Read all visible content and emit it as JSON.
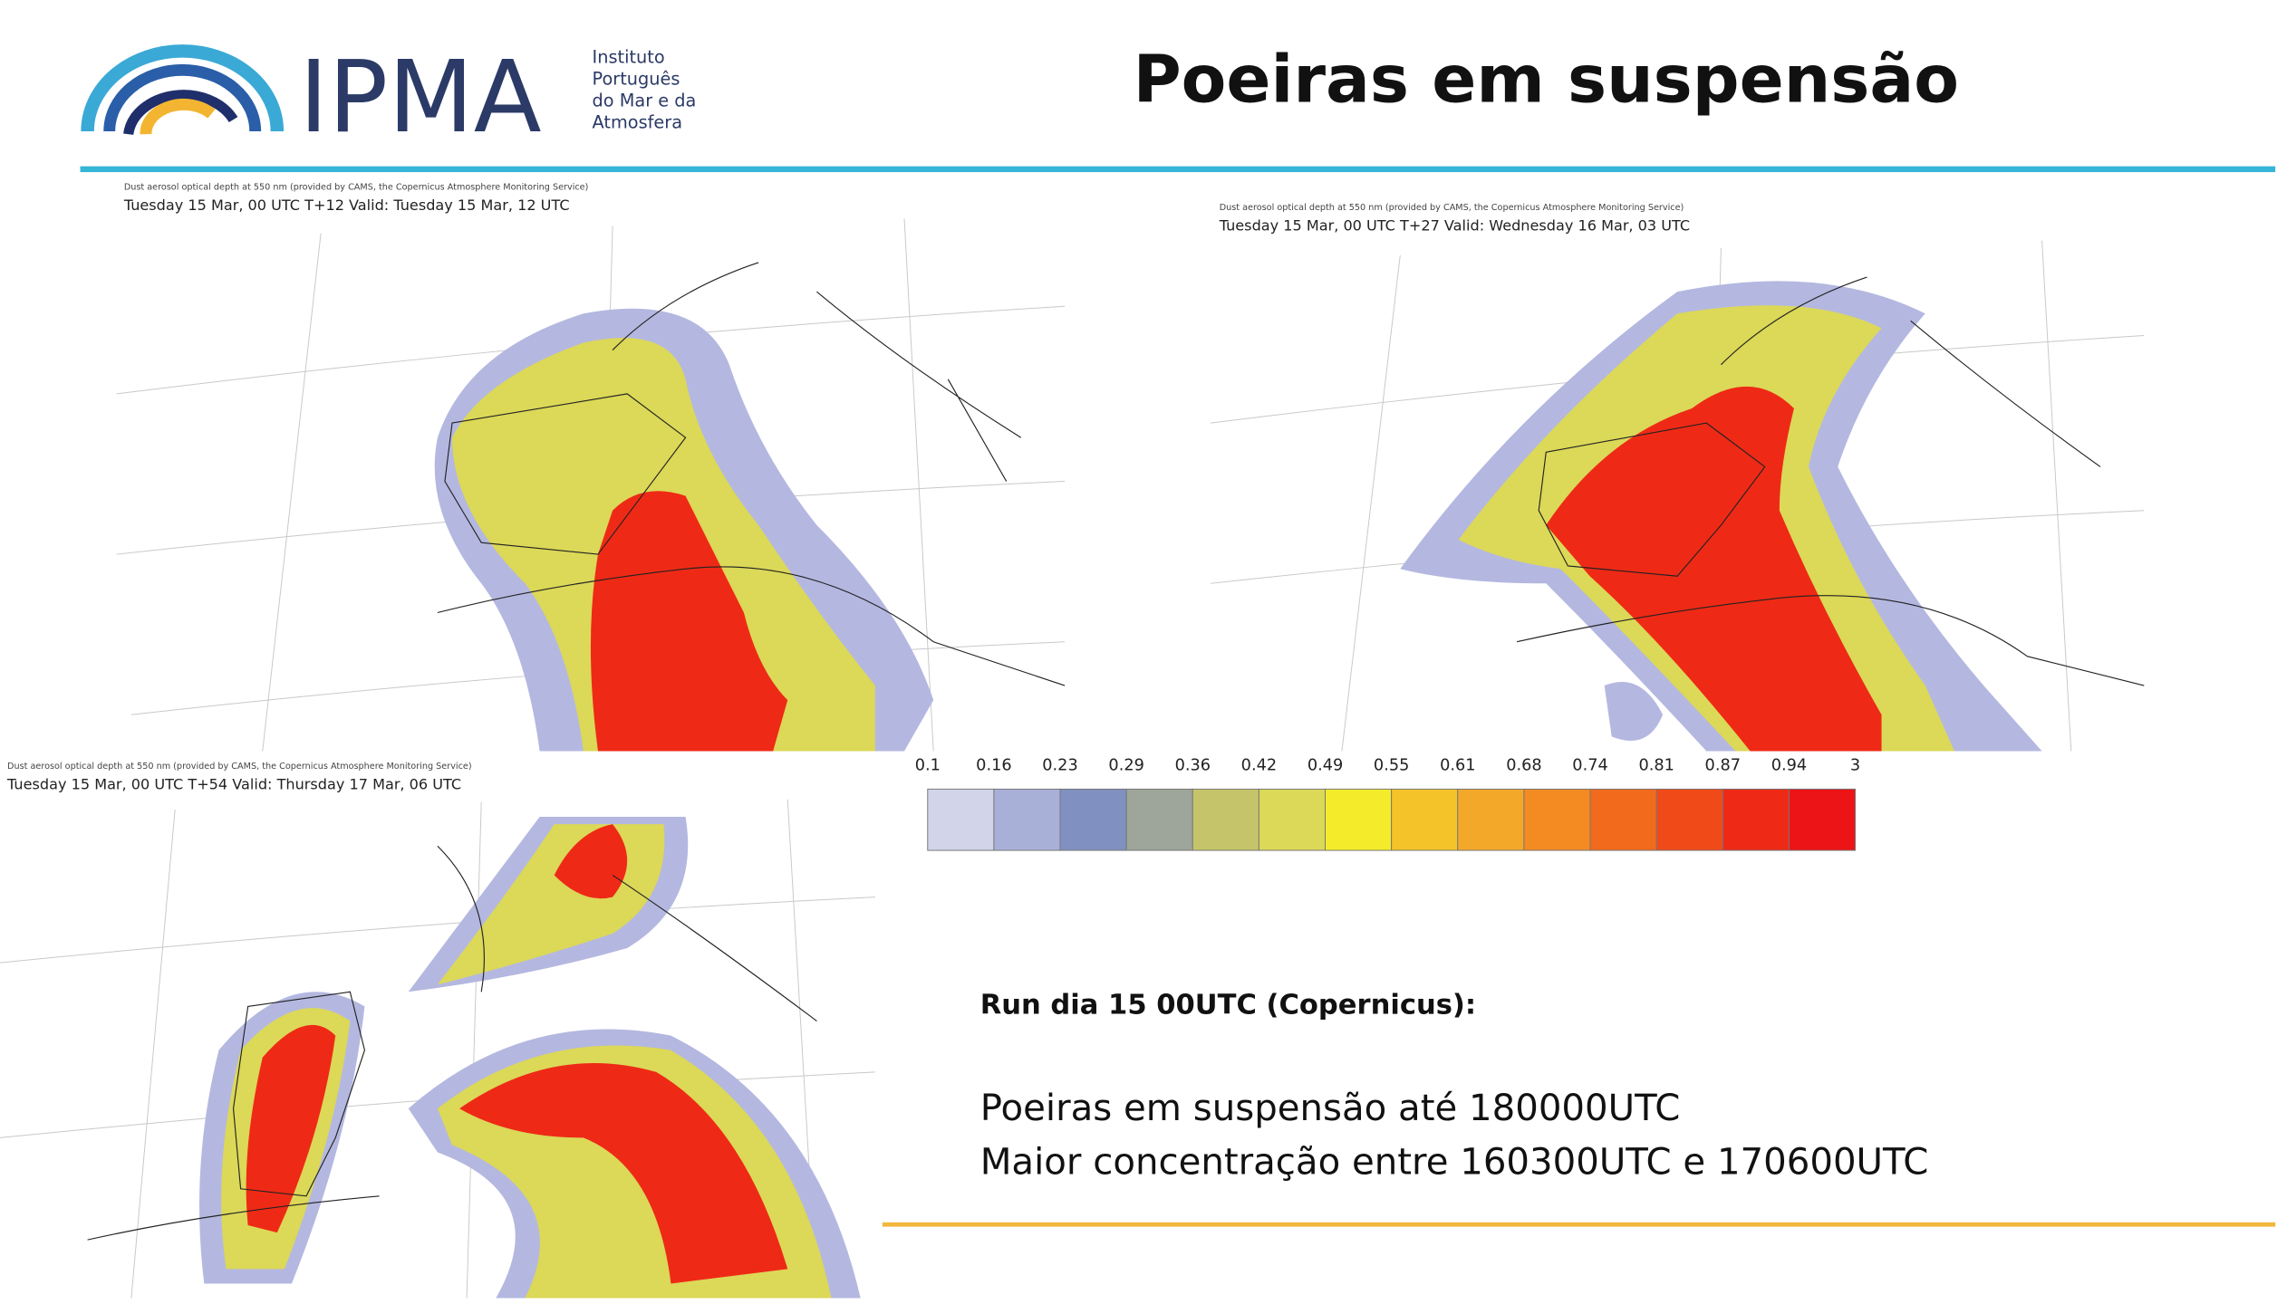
{
  "header": {
    "logo_text": "IPMA",
    "institute_lines": [
      "Instituto",
      "Português",
      "do Mar e da",
      "Atmosfera"
    ],
    "title": "Poeiras em suspensão"
  },
  "panels": [
    {
      "source": "Dust aerosol optical depth at 550 nm (provided by CAMS, the Copernicus Atmosphere Monitoring Service)",
      "caption": "Tuesday 15 Mar, 00 UTC T+12 Valid: Tuesday 15 Mar, 12 UTC"
    },
    {
      "source": "Dust aerosol optical depth at 550 nm (provided by CAMS, the Copernicus Atmosphere Monitoring Service)",
      "caption": "Tuesday 15 Mar, 00 UTC T+27 Valid: Wednesday 16 Mar, 03 UTC"
    },
    {
      "source": "Dust aerosol optical depth at 550 nm (provided by CAMS, the Copernicus Atmosphere Monitoring Service)",
      "caption": "Tuesday 15 Mar, 00 UTC T+54 Valid: Thursday 17 Mar, 06 UTC"
    }
  ],
  "legend": {
    "ticks": [
      0.1,
      0.16,
      0.23,
      0.29,
      0.36,
      0.42,
      0.49,
      0.55,
      0.61,
      0.68,
      0.74,
      0.81,
      0.87,
      0.94,
      3
    ],
    "colors": [
      "#d2d4ea",
      "#a9b0d8",
      "#8090c0",
      "#9ea59a",
      "#c6c46a",
      "#dcd858",
      "#f4ec2a",
      "#f4c32a",
      "#f4a82a",
      "#f38a22",
      "#f26a1c",
      "#f04a18",
      "#ee2a16",
      "#ec1416"
    ]
  },
  "notes": {
    "heading": "Run dia 15 00UTC (Copernicus):",
    "lines": [
      "Poeiras em suspensão até 180000UTC",
      "Maior concentração entre 160300UTC e 170600UTC"
    ]
  }
}
